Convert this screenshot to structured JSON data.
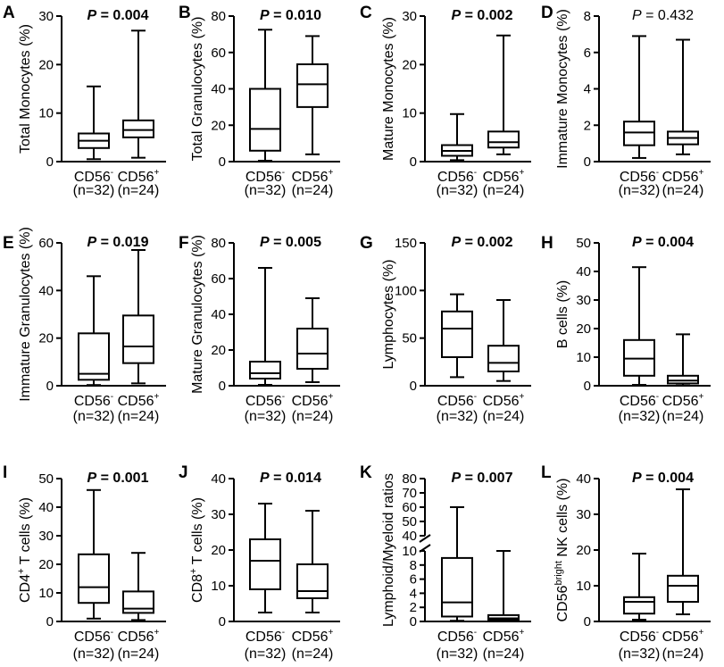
{
  "figure": {
    "group_labels": [
      "CD56",
      "CD56"
    ],
    "group_superscripts": [
      "-",
      "+"
    ],
    "group_counts": [
      "(n=32)",
      "(n=24)"
    ]
  },
  "chart_data": [
    {
      "panel": "A",
      "type": "boxplot",
      "ylabel": "Total Monocytes (%)",
      "ylabel_parts": [
        [
          "Total Monocytes (%)",
          ""
        ]
      ],
      "pvalue": "P = 0.004",
      "p_bold": true,
      "ylim": [
        0,
        30
      ],
      "yticks": [
        0,
        10,
        20,
        30
      ],
      "boxes": [
        {
          "min": 0.5,
          "q1": 2.8,
          "median": 4.3,
          "q3": 5.8,
          "max": 15.5
        },
        {
          "min": 0.8,
          "q1": 5.0,
          "median": 6.5,
          "q3": 8.5,
          "max": 27
        }
      ]
    },
    {
      "panel": "B",
      "type": "boxplot",
      "ylabel": "Total Granulocytes (%)",
      "ylabel_parts": [
        [
          "Total Granulocytes (%)",
          ""
        ]
      ],
      "pvalue": "P = 0.010",
      "p_bold": true,
      "ylim": [
        0,
        80
      ],
      "yticks": [
        0,
        20,
        40,
        60,
        80
      ],
      "boxes": [
        {
          "min": 0.5,
          "q1": 6,
          "median": 18,
          "q3": 40,
          "max": 72.5
        },
        {
          "min": 4,
          "q1": 30,
          "median": 42.5,
          "q3": 53.5,
          "max": 69
        }
      ]
    },
    {
      "panel": "C",
      "type": "boxplot",
      "ylabel": "Mature Monocytes (%)",
      "ylabel_parts": [
        [
          "Mature Monocytes (%)",
          ""
        ]
      ],
      "pvalue": "P = 0.002",
      "p_bold": true,
      "ylim": [
        0,
        30
      ],
      "yticks": [
        0,
        10,
        20,
        30
      ],
      "boxes": [
        {
          "min": 0.3,
          "q1": 1.2,
          "median": 2.2,
          "q3": 3.4,
          "max": 9.8
        },
        {
          "min": 1.5,
          "q1": 2.9,
          "median": 4.0,
          "q3": 6.2,
          "max": 26
        }
      ]
    },
    {
      "panel": "D",
      "type": "boxplot",
      "ylabel": "Immature Monocytes (%)",
      "ylabel_parts": [
        [
          "Immature Monocytes (%)",
          ""
        ]
      ],
      "pvalue": "P = 0.432",
      "p_bold": false,
      "ylim": [
        0,
        8
      ],
      "yticks": [
        0,
        2,
        4,
        6,
        8
      ],
      "boxes": [
        {
          "min": 0.2,
          "q1": 0.9,
          "median": 1.6,
          "q3": 2.2,
          "max": 6.9
        },
        {
          "min": 0.4,
          "q1": 0.95,
          "median": 1.3,
          "q3": 1.65,
          "max": 6.7
        }
      ]
    },
    {
      "panel": "E",
      "type": "boxplot",
      "ylabel": "Immature Granulocytes (%)",
      "ylabel_parts": [
        [
          "Immature Granulocytes (%)",
          ""
        ]
      ],
      "pvalue": "P = 0.019",
      "p_bold": true,
      "ylim": [
        0,
        60
      ],
      "yticks": [
        0,
        20,
        40,
        60
      ],
      "boxes": [
        {
          "min": 0.3,
          "q1": 2.5,
          "median": 5,
          "q3": 22,
          "max": 46
        },
        {
          "min": 1,
          "q1": 9.5,
          "median": 16.5,
          "q3": 29.5,
          "max": 57
        }
      ]
    },
    {
      "panel": "F",
      "type": "boxplot",
      "ylabel": "Mature Granulocytes (%)",
      "ylabel_parts": [
        [
          "Mature Granulocytes (%)",
          ""
        ]
      ],
      "pvalue": "P = 0.005",
      "p_bold": true,
      "ylim": [
        0,
        80
      ],
      "yticks": [
        0,
        20,
        40,
        60,
        80
      ],
      "boxes": [
        {
          "min": 0.5,
          "q1": 4,
          "median": 7,
          "q3": 13.5,
          "max": 66
        },
        {
          "min": 2,
          "q1": 9.5,
          "median": 18,
          "q3": 32,
          "max": 49
        }
      ]
    },
    {
      "panel": "G",
      "type": "boxplot",
      "ylabel": "Lymphocytes (%)",
      "ylabel_parts": [
        [
          "Lymphocytes (%)",
          ""
        ]
      ],
      "pvalue": "P = 0.002",
      "p_bold": true,
      "ylim": [
        0,
        150
      ],
      "yticks": [
        0,
        50,
        100,
        150
      ],
      "boxes": [
        {
          "min": 9,
          "q1": 30,
          "median": 60,
          "q3": 78,
          "max": 96
        },
        {
          "min": 5,
          "q1": 15,
          "median": 24,
          "q3": 42,
          "max": 90
        }
      ]
    },
    {
      "panel": "H",
      "type": "boxplot",
      "ylabel": "B cells (%)",
      "ylabel_parts": [
        [
          "B cells (%)",
          ""
        ]
      ],
      "pvalue": "P = 0.004",
      "p_bold": true,
      "ylim": [
        0,
        50
      ],
      "yticks": [
        0,
        10,
        20,
        30,
        40,
        50
      ],
      "boxes": [
        {
          "min": 0.3,
          "q1": 3.5,
          "median": 9.5,
          "q3": 16,
          "max": 41.5
        },
        {
          "min": 0.1,
          "q1": 0.8,
          "median": 1.8,
          "q3": 3.5,
          "max": 18
        }
      ]
    },
    {
      "panel": "I",
      "type": "boxplot",
      "ylabel": "CD4+ T cells (%)",
      "ylabel_parts": [
        [
          "CD4",
          ""
        ],
        [
          "+",
          "sup"
        ],
        [
          " T cells (%)",
          ""
        ]
      ],
      "pvalue": "P = 0.001",
      "p_bold": true,
      "ylim": [
        0,
        50
      ],
      "yticks": [
        0,
        10,
        20,
        30,
        40,
        50
      ],
      "boxes": [
        {
          "min": 1,
          "q1": 6.5,
          "median": 12,
          "q3": 23.5,
          "max": 46
        },
        {
          "min": 0.5,
          "q1": 3,
          "median": 4.5,
          "q3": 10.5,
          "max": 24
        }
      ]
    },
    {
      "panel": "J",
      "type": "boxplot",
      "ylabel": "CD8+ T cells (%)",
      "ylabel_parts": [
        [
          "CD8",
          ""
        ],
        [
          "+",
          "sup"
        ],
        [
          " T cells (%)",
          ""
        ]
      ],
      "pvalue": "P = 0.014",
      "p_bold": true,
      "ylim": [
        0,
        40
      ],
      "yticks": [
        0,
        10,
        20,
        30,
        40
      ],
      "boxes": [
        {
          "min": 2.5,
          "q1": 9,
          "median": 17,
          "q3": 23,
          "max": 33
        },
        {
          "min": 2.5,
          "q1": 6.5,
          "median": 8.5,
          "q3": 16,
          "max": 31
        }
      ]
    },
    {
      "panel": "K",
      "type": "boxplot",
      "broken_axis": true,
      "ylabel": "Lymphoid/Myeloid ratios",
      "ylabel_parts": [
        [
          "Lymphoid/Myeloid ratios",
          ""
        ]
      ],
      "pvalue": "P = 0.007",
      "p_bold": true,
      "ylim": [
        0,
        80
      ],
      "lower_range": [
        0,
        10
      ],
      "upper_range": [
        40,
        80
      ],
      "yticks": [
        0,
        2,
        4,
        6,
        8,
        10,
        40,
        50,
        60,
        70,
        80
      ],
      "boxes": [
        {
          "min": 0.1,
          "q1": 0.7,
          "median": 2.7,
          "q3": 9.0,
          "max": 60
        },
        {
          "min": 0.05,
          "q1": 0.2,
          "median": 0.45,
          "q3": 0.9,
          "max": 10
        }
      ]
    },
    {
      "panel": "L",
      "type": "boxplot",
      "ylabel": "CD56bright NK cells (%)",
      "ylabel_parts": [
        [
          "CD56",
          ""
        ],
        [
          "bright",
          "sup"
        ],
        [
          " NK cells (%)",
          ""
        ]
      ],
      "pvalue": "P = 0.004",
      "p_bold": true,
      "ylim": [
        0,
        40
      ],
      "yticks": [
        0,
        10,
        20,
        30,
        40
      ],
      "boxes": [
        {
          "min": 0.5,
          "q1": 2.2,
          "median": 5.5,
          "q3": 6.8,
          "max": 19
        },
        {
          "min": 2,
          "q1": 5.5,
          "median": 10,
          "q3": 12.8,
          "max": 37
        }
      ]
    }
  ]
}
